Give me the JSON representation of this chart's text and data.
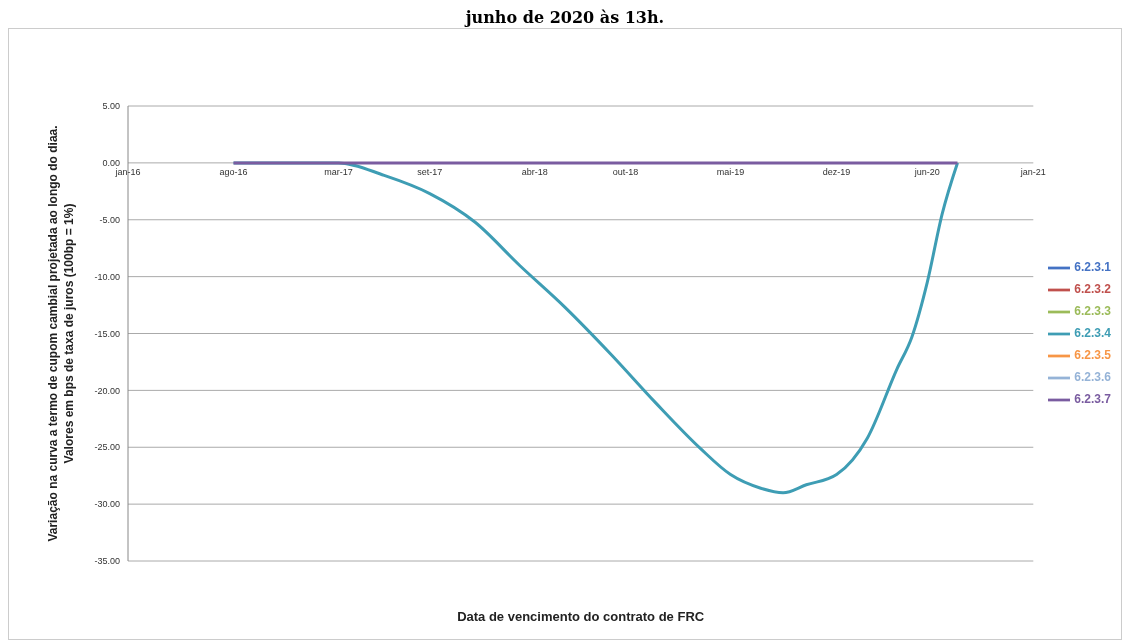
{
  "chart_data": {
    "type": "line",
    "title": "junho de 2020 às 13h.",
    "xlabel": "Data de vencimento do contrato de FRC",
    "ylabel": "Variação na curva a termo de cupom cambial projetada ao longo do diaa.\nValores em bps de taxa de juros (100bp = 1%)",
    "xlim": [
      "2016-01-01",
      "2021-01-01"
    ],
    "xticks": [
      {
        "value": "2016-01-01",
        "label": "jan-16"
      },
      {
        "value": "2016-08-01",
        "label": "ago-16"
      },
      {
        "value": "2017-03-01",
        "label": "mar-17"
      },
      {
        "value": "2017-09-01",
        "label": "set-17"
      },
      {
        "value": "2018-04-01",
        "label": "abr-18"
      },
      {
        "value": "2018-10-01",
        "label": "out-18"
      },
      {
        "value": "2019-05-01",
        "label": "mai-19"
      },
      {
        "value": "2019-12-01",
        "label": "dez-19"
      },
      {
        "value": "2020-06-01",
        "label": "jun-20"
      },
      {
        "value": "2021-01-01",
        "label": "jan-21"
      }
    ],
    "ylim": [
      -35,
      5
    ],
    "yticks": [
      {
        "value": 5,
        "label": "5.00"
      },
      {
        "value": 0,
        "label": "0.00"
      },
      {
        "value": -5,
        "label": "-5.00"
      },
      {
        "value": -10,
        "label": "-10.00"
      },
      {
        "value": -15,
        "label": "-15.00"
      },
      {
        "value": -20,
        "label": "-20.00"
      },
      {
        "value": -25,
        "label": "-25.00"
      },
      {
        "value": -30,
        "label": "-30.00"
      },
      {
        "value": -35,
        "label": "-35.00"
      }
    ],
    "grid": "y",
    "legend": "right",
    "marker": "none",
    "line_style": "solid",
    "series": [
      {
        "name": "6.2.3.1",
        "color": "#4472c4"
      },
      {
        "name": "6.2.3.2",
        "color": "#c0504d"
      },
      {
        "name": "6.2.3.3",
        "color": "#9bbb59"
      },
      {
        "name": "6.2.3.4",
        "color": "#3e9db4",
        "x": [
          "2016-08-01",
          "2016-11-01",
          "2017-03-01",
          "2017-06-01",
          "2017-09-01",
          "2017-12-01",
          "2018-03-01",
          "2018-06-01",
          "2018-09-01",
          "2018-12-01",
          "2019-03-01",
          "2019-05-01",
          "2019-07-01",
          "2019-08-15",
          "2019-10-01",
          "2019-12-01",
          "2020-02-01",
          "2020-04-01",
          "2020-05-01",
          "2020-06-01",
          "2020-07-01",
          "2020-08-01"
        ],
        "values": [
          0,
          0,
          0,
          -1.1,
          -2.7,
          -5.2,
          -9,
          -12.7,
          -16.8,
          -21.1,
          -25.1,
          -27.4,
          -28.6,
          -29,
          -28.3,
          -27.4,
          -24.2,
          -18.1,
          -15.3,
          -10.5,
          -4.5,
          0
        ]
      },
      {
        "name": "6.2.3.5",
        "color": "#f79646"
      },
      {
        "name": "6.2.3.6",
        "color": "#95b3d7"
      },
      {
        "name": "6.2.3.7",
        "color": "#7a5ca0",
        "x": [
          "2016-08-01",
          "2020-08-01"
        ],
        "values": [
          0,
          0
        ]
      }
    ]
  }
}
